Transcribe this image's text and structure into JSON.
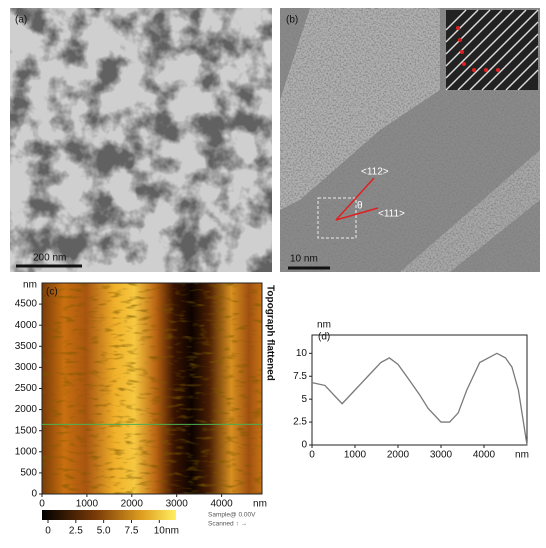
{
  "panels": {
    "a": {
      "label": "(a)",
      "scale": "200 nm"
    },
    "b": {
      "label": "(b)",
      "scale": "10 nm",
      "dir1": "<112>",
      "angle": "θ",
      "dir2": "<111>"
    }
  },
  "chart_data": [
    {
      "type": "heatmap",
      "label": "(c)",
      "side_label": "Topograph flattened",
      "xlabel": "nm",
      "ylabel": "nm",
      "xlim": [
        0,
        4900
      ],
      "xticks": [
        0,
        1000,
        2000,
        3000,
        4000
      ],
      "ylim": [
        0,
        5000
      ],
      "yticks": [
        0,
        500,
        1000,
        1500,
        2000,
        2500,
        3000,
        3500,
        4000,
        4500
      ],
      "profile_line_y": 1650,
      "colorbar": {
        "lim": [
          0,
          11.5
        ],
        "ticks": [
          0,
          2.5,
          {
            "value": 5,
            "label": "5.0"
          },
          7.5,
          10
        ],
        "unit": "nm"
      },
      "notes": [
        "Sample@ 0.00V",
        "Scanned ↑ →"
      ]
    },
    {
      "type": "line",
      "label": "(d)",
      "xlabel": "nm",
      "ylabel": "nm",
      "xlim": [
        0,
        5000
      ],
      "xticks": [
        0,
        1000,
        2000,
        3000,
        4000
      ],
      "ylim": [
        0,
        12
      ],
      "yticks": [
        0,
        2.5,
        5,
        7.5,
        10
      ],
      "series": [
        {
          "color": "#7a7a7a",
          "x": [
            0,
            300,
            700,
            1000,
            1300,
            1600,
            1800,
            2000,
            2200,
            2500,
            2700,
            3000,
            3200,
            3400,
            3600,
            3900,
            4100,
            4300,
            4500,
            4650,
            4800,
            4950,
            5000
          ],
          "values": [
            6.8,
            6.5,
            4.5,
            6,
            7.5,
            9,
            9.5,
            8.8,
            7.5,
            5.5,
            4,
            2.5,
            2.5,
            3.5,
            6,
            9,
            9.5,
            10,
            9.5,
            8.5,
            6,
            1.5,
            0
          ]
        }
      ]
    }
  ]
}
